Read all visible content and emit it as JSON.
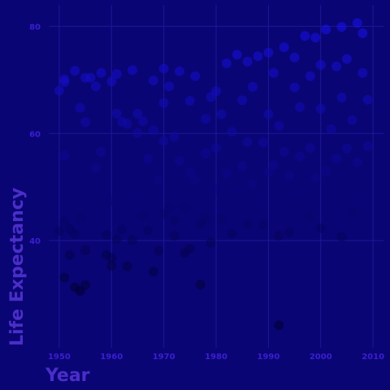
{
  "chart_data": {
    "type": "scatter",
    "xlabel": "Year",
    "ylabel": "Life Expectancy",
    "xlim": [
      1948,
      2012
    ],
    "ylim": [
      20,
      84
    ],
    "x_ticks": [
      1950,
      1960,
      1970,
      1980,
      1990,
      2000,
      2010
    ],
    "y_ticks": [
      40,
      60,
      80
    ],
    "grid": true,
    "legend": "none",
    "color_low": "#000030",
    "color_high": "#1a10f0",
    "background": "#0a0575",
    "series": [
      {
        "points": [
          [
            1950,
            41.8
          ],
          [
            1950,
            68.0
          ],
          [
            1951,
            55.9
          ],
          [
            1951,
            70.1
          ],
          [
            1951,
            43.6
          ],
          [
            1951,
            69.6
          ],
          [
            1951,
            33.1
          ],
          [
            1952,
            37.3
          ],
          [
            1952,
            42.1
          ],
          [
            1953,
            41.2
          ],
          [
            1953,
            71.7
          ],
          [
            1953,
            31.3
          ],
          [
            1954,
            64.8
          ],
          [
            1954,
            30.6
          ],
          [
            1954,
            44.2
          ],
          [
            1955,
            70.4
          ],
          [
            1955,
            31.7
          ],
          [
            1955,
            38.2
          ],
          [
            1955,
            62.1
          ],
          [
            1956,
            70.4
          ],
          [
            1957,
            53.6
          ],
          [
            1957,
            68.8
          ],
          [
            1958,
            71.3
          ],
          [
            1958,
            56.6
          ],
          [
            1958,
            46.7
          ],
          [
            1959,
            41.1
          ],
          [
            1959,
            37.3
          ],
          [
            1959,
            48.9
          ],
          [
            1960,
            35.3
          ],
          [
            1960,
            36.8
          ],
          [
            1960,
            47.4
          ],
          [
            1960,
            69.7
          ],
          [
            1961,
            71.1
          ],
          [
            1961,
            40.3
          ],
          [
            1961,
            63.7
          ],
          [
            1962,
            42.1
          ],
          [
            1962,
            62.2
          ],
          [
            1963,
            61.8
          ],
          [
            1963,
            48.6
          ],
          [
            1963,
            35.2
          ],
          [
            1964,
            40.1
          ],
          [
            1964,
            71.8
          ],
          [
            1965,
            60.1
          ],
          [
            1965,
            63.7
          ],
          [
            1966,
            48.2
          ],
          [
            1966,
            62.3
          ],
          [
            1966,
            44.6
          ],
          [
            1967,
            41.9
          ],
          [
            1967,
            55.3
          ],
          [
            1968,
            60.6
          ],
          [
            1968,
            34.2
          ],
          [
            1968,
            69.9
          ],
          [
            1969,
            51.4
          ],
          [
            1969,
            38.1
          ],
          [
            1970,
            72.1
          ],
          [
            1970,
            44.9
          ],
          [
            1970,
            58.6
          ],
          [
            1970,
            65.7
          ],
          [
            1971,
            68.8
          ],
          [
            1971,
            46.1
          ],
          [
            1972,
            43.7
          ],
          [
            1972,
            59.4
          ],
          [
            1972,
            40.9
          ],
          [
            1973,
            54.9
          ],
          [
            1973,
            71.6
          ],
          [
            1974,
            46.2
          ],
          [
            1974,
            37.7
          ],
          [
            1975,
            52.7
          ],
          [
            1975,
            66.1
          ],
          [
            1975,
            38.5
          ],
          [
            1976,
            70.7
          ],
          [
            1976,
            51.4
          ],
          [
            1977,
            43.1
          ],
          [
            1977,
            31.8
          ],
          [
            1978,
            62.7
          ],
          [
            1978,
            56.3
          ],
          [
            1978,
            44.1
          ],
          [
            1979,
            39.6
          ],
          [
            1979,
            66.8
          ],
          [
            1980,
            49.6
          ],
          [
            1980,
            67.9
          ],
          [
            1980,
            57.3
          ],
          [
            1981,
            63.6
          ],
          [
            1981,
            44.1
          ],
          [
            1982,
            73.1
          ],
          [
            1982,
            52.6
          ],
          [
            1983,
            41.3
          ],
          [
            1983,
            60.3
          ],
          [
            1984,
            74.7
          ],
          [
            1984,
            48.8
          ],
          [
            1985,
            53.9
          ],
          [
            1985,
            66.2
          ],
          [
            1986,
            43.1
          ],
          [
            1986,
            73.4
          ],
          [
            1986,
            58.4
          ],
          [
            1987,
            50.6
          ],
          [
            1987,
            68.7
          ],
          [
            1988,
            48.4
          ],
          [
            1988,
            74.4
          ],
          [
            1989,
            58.3
          ],
          [
            1989,
            42.9
          ],
          [
            1990,
            75.1
          ],
          [
            1990,
            52.8
          ],
          [
            1990,
            63.6
          ],
          [
            1991,
            54.1
          ],
          [
            1991,
            71.3
          ],
          [
            1992,
            40.9
          ],
          [
            1992,
            24.2
          ],
          [
            1992,
            61.4
          ],
          [
            1993,
            56.6
          ],
          [
            1993,
            76.1
          ],
          [
            1994,
            52.1
          ],
          [
            1994,
            41.5
          ],
          [
            1995,
            74.2
          ],
          [
            1995,
            46.6
          ],
          [
            1995,
            68.6
          ],
          [
            1996,
            55.7
          ],
          [
            1996,
            64.9
          ],
          [
            1997,
            78.2
          ],
          [
            1997,
            48.4
          ],
          [
            1998,
            57.3
          ],
          [
            1998,
            44.6
          ],
          [
            1998,
            70.7
          ],
          [
            1999,
            51.7
          ],
          [
            1999,
            77.9
          ],
          [
            2000,
            64.6
          ],
          [
            2000,
            42.3
          ],
          [
            2000,
            72.8
          ],
          [
            2001,
            52.9
          ],
          [
            2001,
            79.4
          ],
          [
            2002,
            60.8
          ],
          [
            2002,
            47.7
          ],
          [
            2003,
            72.5
          ],
          [
            2003,
            55.3
          ],
          [
            2004,
            40.7
          ],
          [
            2004,
            79.9
          ],
          [
            2004,
            66.7
          ],
          [
            2005,
            57.2
          ],
          [
            2005,
            73.9
          ],
          [
            2006,
            45.4
          ],
          [
            2006,
            62.5
          ],
          [
            2007,
            80.6
          ],
          [
            2007,
            54.6
          ],
          [
            2008,
            71.3
          ],
          [
            2008,
            48.1
          ],
          [
            2008,
            78.7
          ],
          [
            2009,
            57.6
          ],
          [
            2009,
            66.3
          ]
        ]
      }
    ]
  }
}
